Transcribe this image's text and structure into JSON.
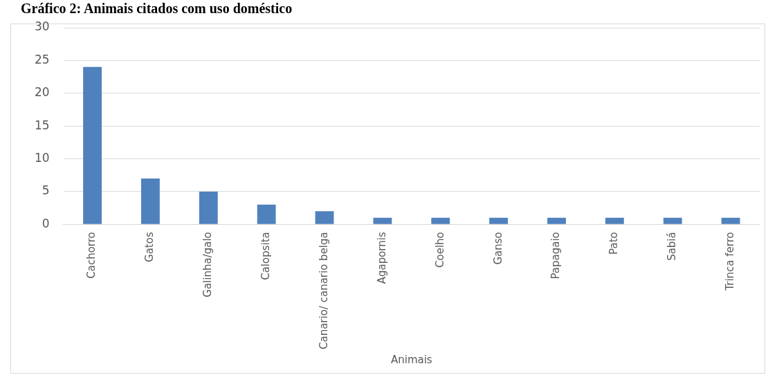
{
  "chart_data": {
    "type": "bar",
    "title": "Gráfico 2: Animais citados com uso doméstico",
    "xlabel": "Animais",
    "categories": [
      "Cachorro",
      "Gatos",
      "Galinha/galo",
      "Calopsita",
      "Canario/ canario belga",
      "Agapornis",
      "Coelho",
      "Ganso",
      "Papagaio",
      "Pato",
      "Sabiá",
      "Trinca ferro"
    ],
    "values": [
      24,
      7,
      5,
      3,
      2,
      1,
      1,
      1,
      1,
      1,
      1,
      1
    ],
    "color": "#4f81bd",
    "ylim": [
      0,
      30
    ],
    "yticks": [
      0,
      5,
      10,
      15,
      20,
      25,
      30
    ],
    "grid": "y",
    "legend": false
  }
}
